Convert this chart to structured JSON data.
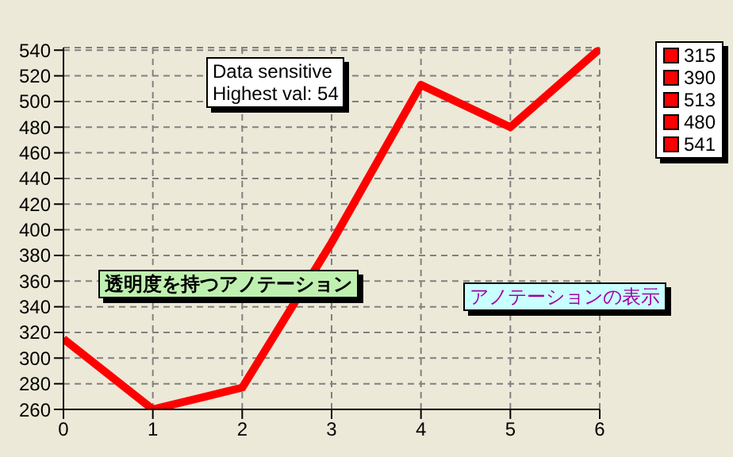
{
  "chart_data": {
    "type": "line",
    "x": [
      0,
      1,
      2,
      3,
      4,
      5,
      6
    ],
    "series": [
      {
        "color": "#ff0000",
        "values": [
          315,
          260,
          277,
          390,
          513,
          480,
          541
        ]
      }
    ],
    "value_labels": [
      "315",
      null,
      null,
      "390",
      "513",
      "480",
      "541"
    ],
    "xlim": [
      0,
      6
    ],
    "xticks": [
      0,
      1,
      2,
      3,
      4,
      5,
      6
    ],
    "ylim": [
      260,
      542
    ],
    "yticks": [
      260,
      280,
      300,
      320,
      340,
      360,
      380,
      400,
      420,
      440,
      460,
      480,
      500,
      520,
      540
    ],
    "grid": true,
    "annotations": [
      "透明度を持つアノテーション",
      "アノテーションの表示",
      "Data sensitive\nHighest val: 54"
    ]
  }
}
